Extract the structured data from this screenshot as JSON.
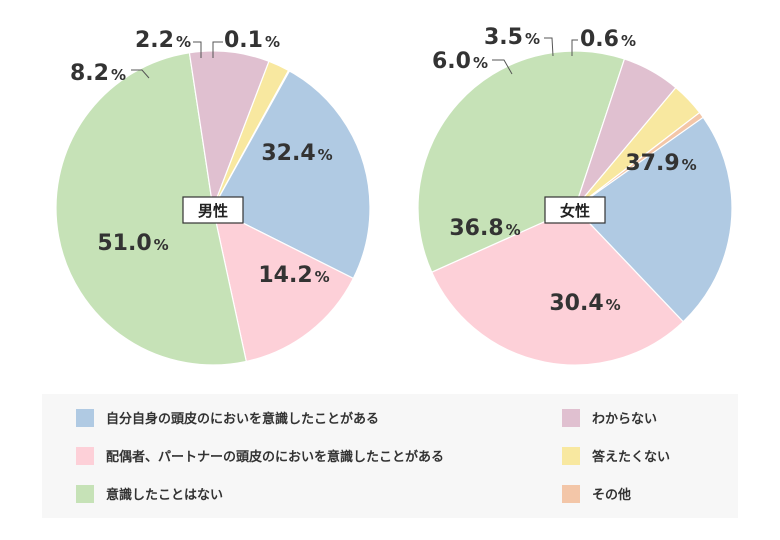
{
  "chart_data": [
    {
      "type": "pie",
      "title": "男性",
      "slices": [
        {
          "label": "自分自身の頭皮のにおいを意識したことがある",
          "value": 32.4,
          "display": "32.4"
        },
        {
          "label": "配偶者、パートナーの頭皮のにおいを意識したことがある",
          "value": 14.2,
          "display": "14.2"
        },
        {
          "label": "意識したことはない",
          "value": 51.0,
          "display": "51.0"
        },
        {
          "label": "わからない",
          "value": 8.2,
          "display": "8.2"
        },
        {
          "label": "答えたくない",
          "value": 2.2,
          "display": "2.2"
        },
        {
          "label": "その他",
          "value": 0.1,
          "display": "0.1"
        }
      ]
    },
    {
      "type": "pie",
      "title": "女性",
      "slices": [
        {
          "label": "自分自身の頭皮のにおいを意識したことがある",
          "value": 37.9,
          "display": "37.9"
        },
        {
          "label": "配偶者、パートナーの頭皮のにおいを意識したことがある",
          "value": 30.4,
          "display": "30.4"
        },
        {
          "label": "意識したことはない",
          "value": 36.8,
          "display": "36.8"
        },
        {
          "label": "わからない",
          "value": 6.0,
          "display": "6.0"
        },
        {
          "label": "答えたくない",
          "value": 3.5,
          "display": "3.5"
        },
        {
          "label": "その他",
          "value": 0.6,
          "display": "0.6"
        }
      ]
    }
  ],
  "unit": "%",
  "colors": [
    "#b0cae3",
    "#fdd0d8",
    "#c6e2b7",
    "#e0c0d0",
    "#f8e8a0",
    "#f3c6a8"
  ],
  "legend": {
    "items": [
      "自分自身の頭皮のにおいを意識したことがある",
      "配偶者、パートナーの頭皮のにおいを意識したことがある",
      "意識したことはない",
      "わからない",
      "答えたくない",
      "その他"
    ]
  }
}
